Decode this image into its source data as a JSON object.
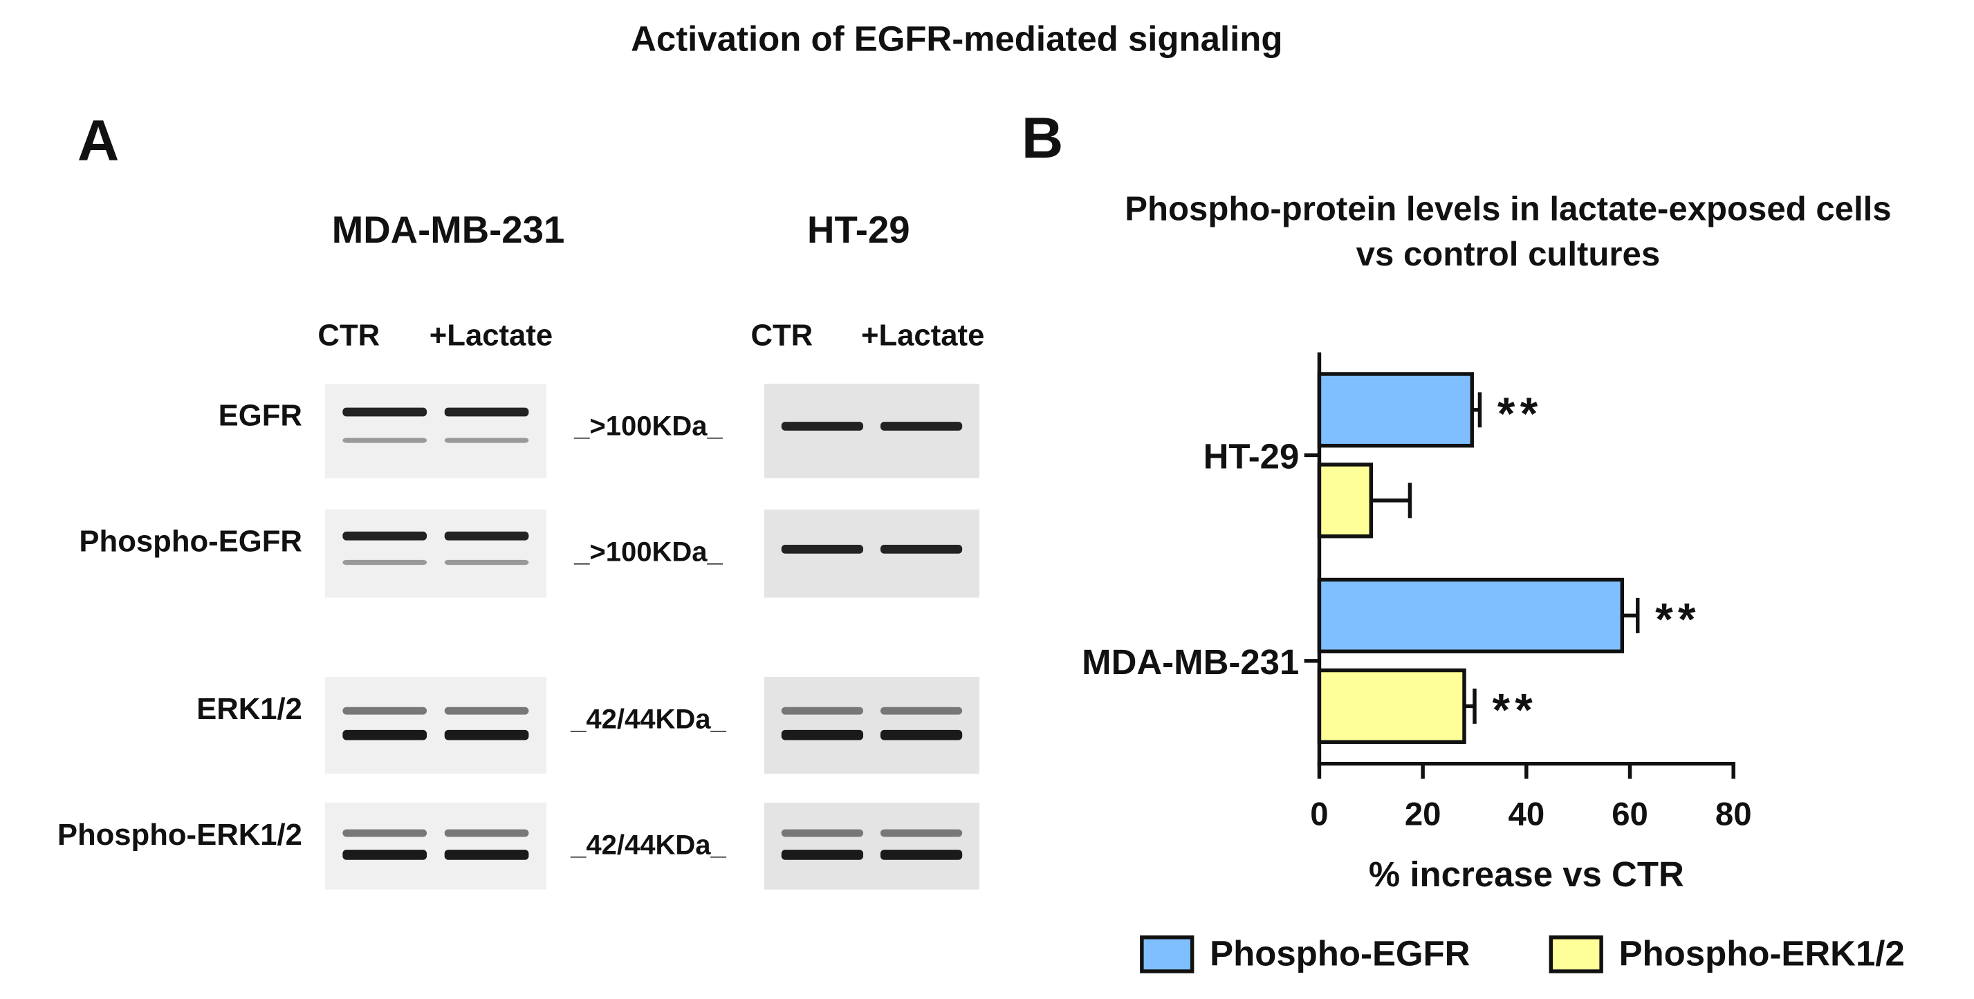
{
  "title": "Activation of EGFR-mediated signaling",
  "panel_a": {
    "label": "A",
    "cell_lines": [
      "MDA-MB-231",
      "HT-29"
    ],
    "lanes": [
      "CTR",
      "+Lactate"
    ],
    "proteins": [
      "EGFR",
      "Phospho-EGFR",
      "ERK1/2",
      "Phospho-ERK1/2"
    ],
    "sizes": [
      "_>100KDa_",
      "_>100KDa_",
      "_42/44KDa_",
      "_42/44KDa_"
    ]
  },
  "panel_b": {
    "label": "B"
  },
  "chart_data": {
    "type": "hbar",
    "title": [
      "Phospho-protein levels in lactate-exposed cells",
      "vs control cultures"
    ],
    "categories": [
      "HT-29",
      "MDA-MB-231"
    ],
    "series": [
      {
        "name": "Phospho-EGFR",
        "color": "#80bfff",
        "values": [
          29.5,
          58.5
        ],
        "errors": [
          1.5,
          3
        ],
        "value_labels": [
          "**",
          "**"
        ]
      },
      {
        "name": "Phospho-ERK1/2",
        "color": "#ffff99",
        "values": [
          10,
          28
        ],
        "errors": [
          7.5,
          2
        ],
        "value_labels": [
          null,
          "**"
        ]
      }
    ],
    "xlabel": "% increase vs CTR",
    "xlim": [
      0,
      80
    ],
    "xticks": [
      0,
      20,
      40,
      60,
      80
    ],
    "legend": "bottom"
  }
}
